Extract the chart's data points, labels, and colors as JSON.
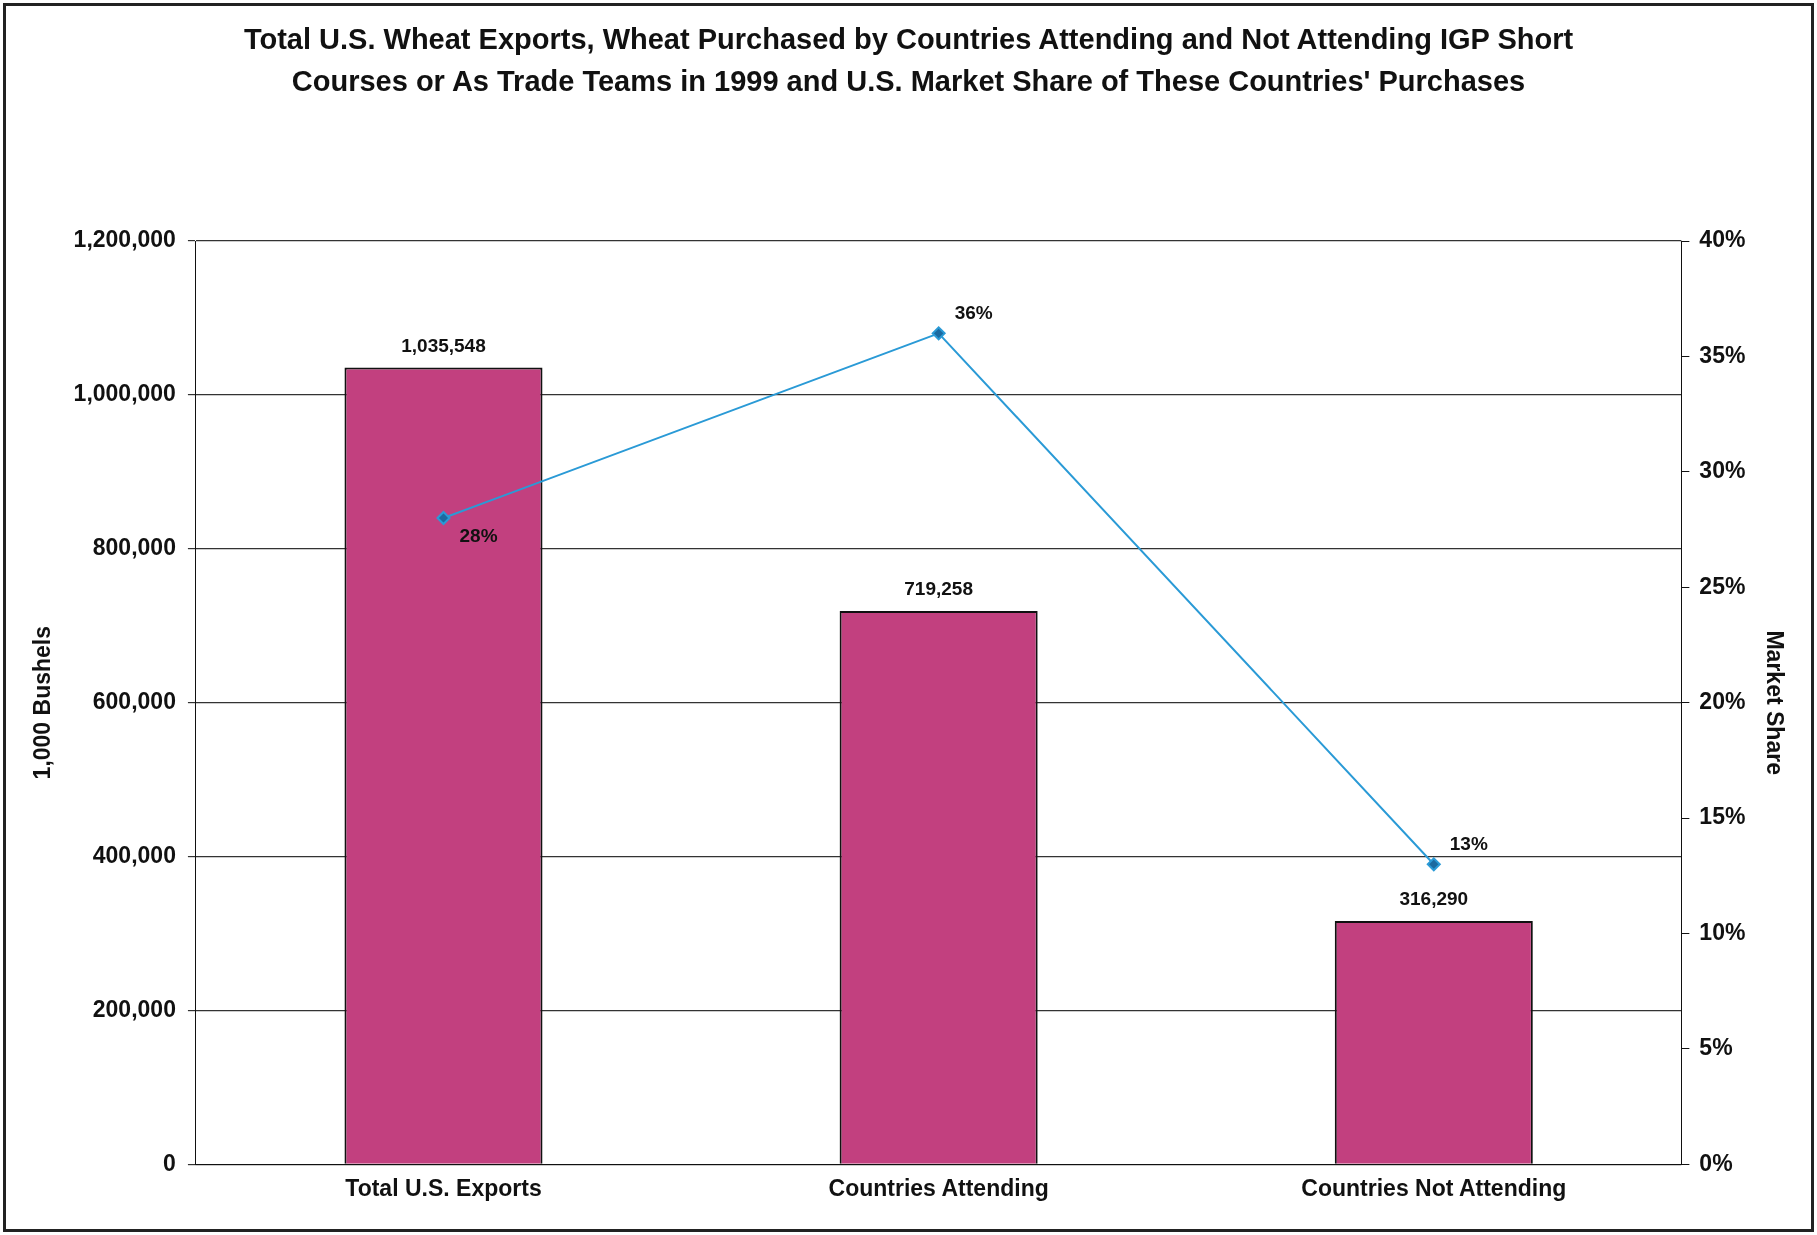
{
  "chart_data": {
    "type": "bar",
    "title": "Total U.S. Wheat Exports, Wheat Purchased by Countries Attending and Not Attending IGP Short Courses or As Trade Teams in 1999 and U.S. Market Share of These Countries' Purchases",
    "ylabel": "1,000 Bushels",
    "y2label": "Market Share",
    "categories": [
      "Total U.S. Exports",
      "Countries Attending",
      "Countries Not Attending"
    ],
    "series": [
      {
        "color": "#c2407f",
        "values": [
          1035548,
          719258,
          316290
        ],
        "value_labels": [
          "1,035,548",
          "719,258",
          "316,290"
        ]
      },
      {
        "type": "line",
        "axis": "y2",
        "color": "#2a9ad6",
        "values": [
          28,
          36,
          13
        ],
        "value_labels": [
          "28%",
          "36%",
          "13%"
        ]
      }
    ],
    "ylim": [
      0,
      1200000
    ],
    "yticks": [
      0,
      {
        "value": 200000,
        "label": "200,000"
      },
      {
        "value": 400000,
        "label": "400,000"
      },
      {
        "value": 600000,
        "label": "600,000"
      },
      {
        "value": 800000,
        "label": "800,000"
      },
      {
        "value": 1000000,
        "label": "1,000,000"
      },
      {
        "value": 1200000,
        "label": "1,200,000"
      }
    ],
    "y2lim": [
      0,
      40
    ],
    "y2ticks": [
      {
        "value": 0,
        "label": "0%"
      },
      {
        "value": 5,
        "label": "5%"
      },
      {
        "value": 10,
        "label": "10%"
      },
      {
        "value": 15,
        "label": "15%"
      },
      {
        "value": 20,
        "label": "20%"
      },
      {
        "value": 25,
        "label": "25%"
      },
      {
        "value": 30,
        "label": "30%"
      },
      {
        "value": 35,
        "label": "35%"
      },
      {
        "value": 40,
        "label": "40%"
      }
    ],
    "grid": "y",
    "legend": false,
    "marker": "diamond",
    "line_style": "solid"
  }
}
